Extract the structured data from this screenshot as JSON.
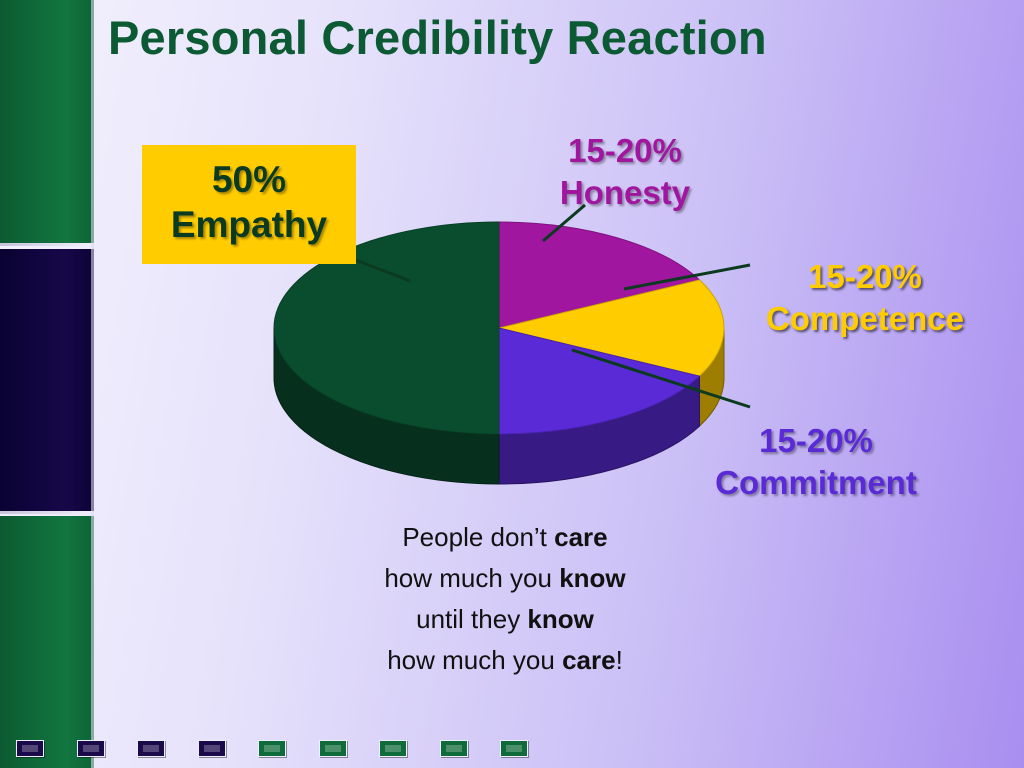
{
  "slide": {
    "title": "Personal Credibility Reaction",
    "colors": {
      "title": "#0b5a33",
      "empathy": "#0a4d2e",
      "honesty": "#a0169f",
      "competence": "#ffcc00",
      "commitment": "#5a2ad6"
    }
  },
  "chart_data": {
    "type": "pie",
    "title": "",
    "slices": [
      {
        "label": "Honesty",
        "value": 17.5,
        "display": "15-20%",
        "color": "#a0169f"
      },
      {
        "label": "Competence",
        "value": 15,
        "display": "15-20%",
        "color": "#ffcc00"
      },
      {
        "label": "Commitment",
        "value": 17.5,
        "display": "15-20%",
        "color": "#5a2ad6"
      },
      {
        "label": "Empathy",
        "value": 50,
        "display": "50%",
        "color": "#0a4d2e"
      }
    ],
    "style": "3d",
    "legend": "none"
  },
  "callouts": {
    "empathy": {
      "pct": "50%",
      "name": "Empathy"
    },
    "honesty": {
      "pct": "15-20%",
      "name": "Honesty"
    },
    "competence": {
      "pct": "15-20%",
      "name": "Competence"
    },
    "commitment": {
      "pct": "15-20%",
      "name": "Commitment"
    }
  },
  "quote": {
    "l1_a": "People don’t ",
    "l1_b": "care",
    "l2_a": "how much you ",
    "l2_b": "know",
    "l3_a": "until they ",
    "l3_b": "know",
    "l4_a": "how much you ",
    "l4_b": "care",
    "l4_c": "!"
  },
  "nav": {
    "buttons": [
      {
        "name": "nav-button-1",
        "color": "navy"
      },
      {
        "name": "nav-button-2",
        "color": "navy"
      },
      {
        "name": "nav-button-3",
        "color": "navy"
      },
      {
        "name": "nav-button-4",
        "color": "navy"
      },
      {
        "name": "nav-button-5",
        "color": "green"
      },
      {
        "name": "nav-button-6",
        "color": "green"
      },
      {
        "name": "nav-button-7",
        "color": "green"
      },
      {
        "name": "nav-button-8",
        "color": "green"
      },
      {
        "name": "nav-button-9",
        "color": "green"
      }
    ]
  }
}
